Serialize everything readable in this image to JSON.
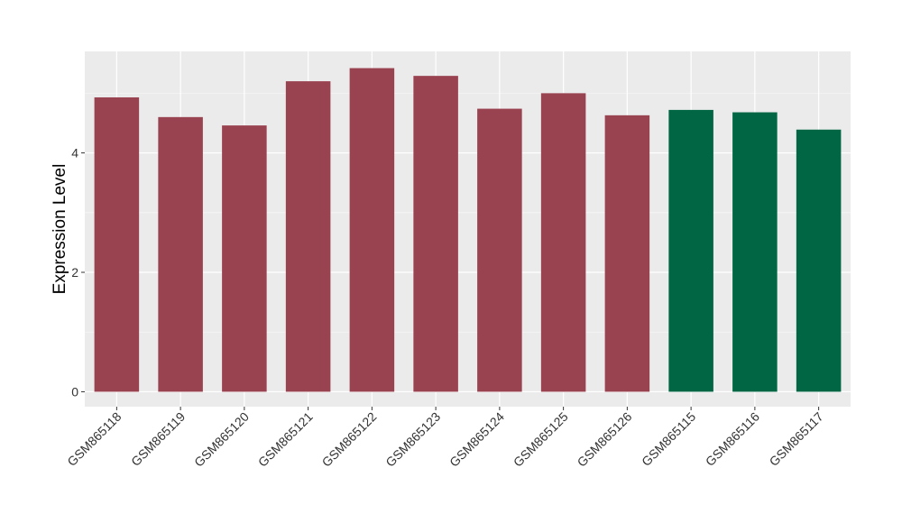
{
  "chart_data": {
    "type": "bar",
    "title": "",
    "xlabel": "",
    "ylabel": "Expression Level",
    "ylim": [
      -0.25,
      5.7
    ],
    "yticks": [
      0,
      2,
      4
    ],
    "grid": true,
    "legend": "none",
    "categories": [
      "GSM865118",
      "GSM865119",
      "GSM865120",
      "GSM865121",
      "GSM865122",
      "GSM865123",
      "GSM865124",
      "GSM865125",
      "GSM865126",
      "GSM865115",
      "GSM865116",
      "GSM865117"
    ],
    "values": [
      4.93,
      4.6,
      4.46,
      5.2,
      5.42,
      5.29,
      4.74,
      5.0,
      4.63,
      4.72,
      4.68,
      4.39
    ],
    "bar_colors": [
      "#9a4350",
      "#9a4350",
      "#9a4350",
      "#9a4350",
      "#9a4350",
      "#9a4350",
      "#9a4350",
      "#9a4350",
      "#9a4350",
      "#006644",
      "#006644",
      "#006644"
    ],
    "panel_background": "#ebebeb"
  }
}
